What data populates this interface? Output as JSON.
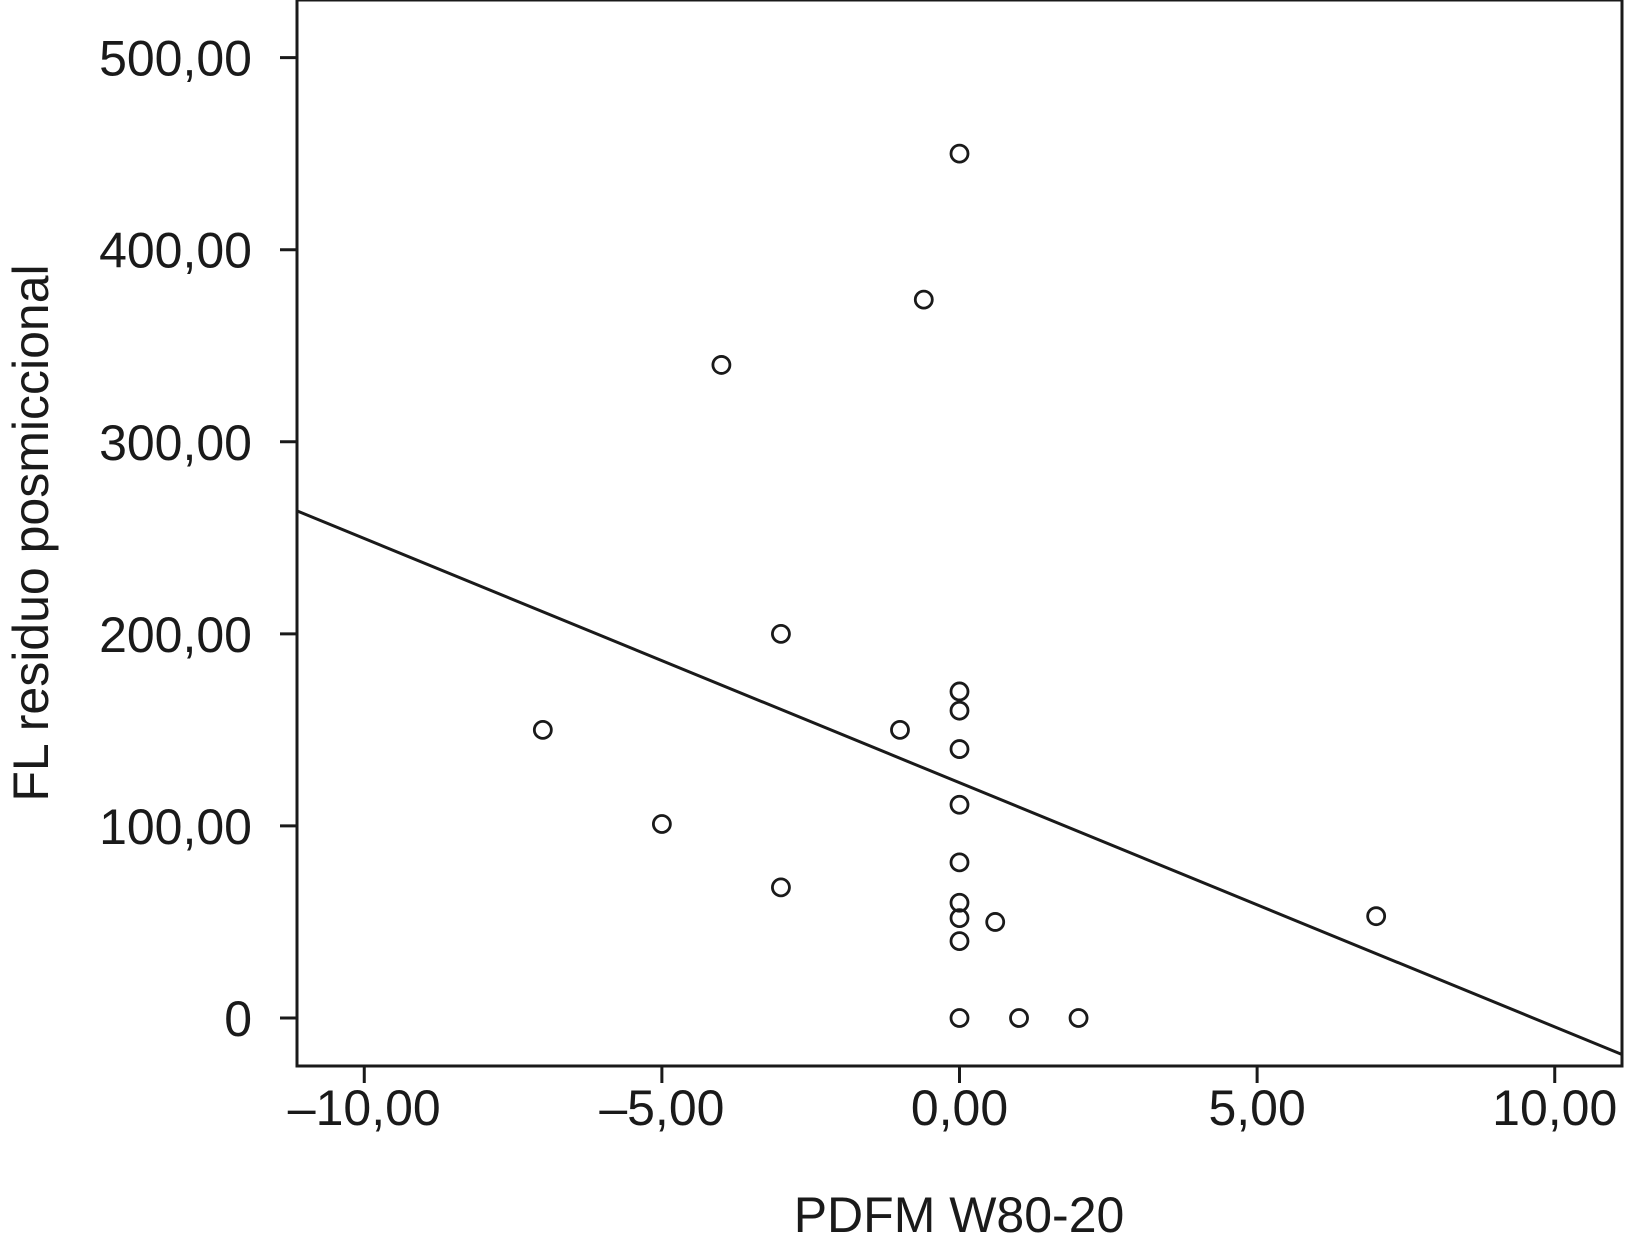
{
  "chart_data": {
    "type": "scatter",
    "title": "",
    "xlabel": "PDFM W80-20",
    "ylabel": "FL residuo posmiccional",
    "xlim": [
      -11.13,
      11.13
    ],
    "ylim": [
      -25,
      530
    ],
    "x_ticks": [
      -10,
      -5,
      0,
      5,
      10
    ],
    "x_tick_labels": [
      "–10,00",
      "–5,00",
      "0,00",
      "5,00",
      "10,00"
    ],
    "y_ticks": [
      0,
      100,
      200,
      300,
      400,
      500
    ],
    "y_tick_labels": [
      "0",
      "100,00",
      "200,00",
      "300,00",
      "400,00",
      "500,00"
    ],
    "grid": false,
    "marker": "open-circle",
    "series": [
      {
        "x": [
          0,
          -0.6,
          -4.0,
          -3.0,
          -7.0,
          -1.0,
          0,
          0,
          0,
          0,
          -5.0,
          0,
          -3.0,
          0,
          0.6,
          0,
          0,
          0,
          1.0,
          2.0,
          7.0
        ],
        "y": [
          450,
          374,
          340,
          200,
          150,
          150,
          170,
          160,
          140,
          111,
          101,
          81,
          68,
          60,
          50,
          52,
          40,
          0,
          0,
          0,
          53
        ]
      }
    ],
    "fit_line": {
      "x": [
        -11.13,
        11.13
      ],
      "y": [
        264,
        -19
      ]
    }
  }
}
